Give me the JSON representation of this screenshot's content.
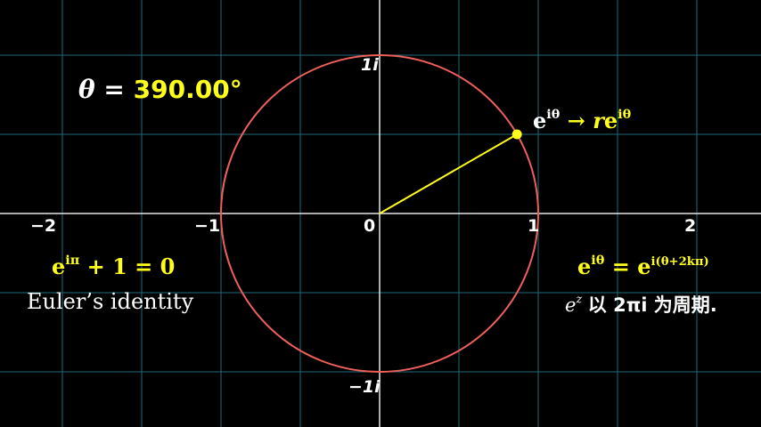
{
  "colors": {
    "background": "#000000",
    "grid": "#1f6d7a",
    "axis": "#e6e6e6",
    "circle": "#f0605a",
    "accent": "#ffff1a",
    "text": "#ffffff"
  },
  "theta": {
    "label": "θ =",
    "value": "390.00°",
    "degrees": 390
  },
  "axes": {
    "x_ticks": [
      {
        "value": -2,
        "label": "−2"
      },
      {
        "value": -1,
        "label": "−1"
      },
      {
        "value": 0,
        "label": "0"
      },
      {
        "value": 1,
        "label": "1"
      },
      {
        "value": 2,
        "label": "2"
      }
    ],
    "y_ticks": [
      {
        "value": 1,
        "label": "1i"
      },
      {
        "value": -1,
        "label": "−1i"
      }
    ],
    "x_range": [
      -2.45,
      2.45
    ],
    "y_range": [
      -1.38,
      1.38
    ]
  },
  "point": {
    "label_base": "e",
    "label_exp": "iθ",
    "arrow": "→",
    "target_r": "r",
    "target_base": "e",
    "target_exp": "iθ"
  },
  "euler": {
    "base": "e",
    "exp": "iπ",
    "rest": "+ 1 = 0",
    "caption": "Euler’s identity"
  },
  "periodic": {
    "lhs_base": "e",
    "lhs_exp": "iθ",
    "eq": "=",
    "rhs_base": "e",
    "rhs_exp": "i(θ+2kπ)",
    "caption_z": "e",
    "caption_z_exp": "z",
    "caption_text": "以 2πi 为周期."
  }
}
